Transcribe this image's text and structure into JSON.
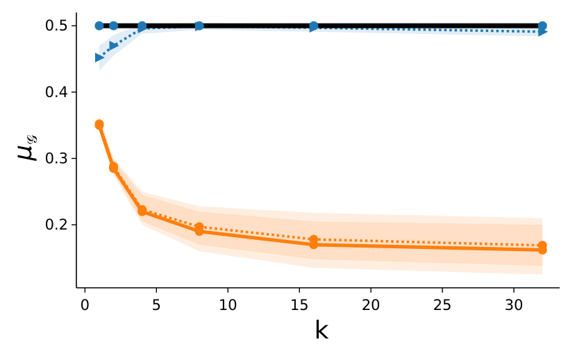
{
  "chart_data": {
    "type": "line",
    "title": "",
    "xlabel": "k",
    "ylabel_main": "μ",
    "ylabel_sub": "𝒢",
    "xlim": [
      -0.6,
      33.2
    ],
    "ylim": [
      0.105,
      0.52
    ],
    "xticks": [
      0,
      5,
      10,
      15,
      20,
      25,
      30
    ],
    "yticks": [
      0.2,
      0.3,
      0.4,
      0.5
    ],
    "xtick_labels": [
      "0",
      "5",
      "10",
      "15",
      "20",
      "25",
      "30"
    ],
    "ytick_labels": [
      "0.2",
      "0.3",
      "0.4",
      "0.5"
    ],
    "grid": false,
    "legend": "none",
    "series": [
      {
        "color": "#ff7f0e",
        "style": "solid",
        "marker": "circle",
        "x": [
          1,
          2,
          4,
          8,
          16,
          32
        ],
        "y": [
          0.35,
          0.285,
          0.22,
          0.19,
          0.17,
          0.162
        ],
        "band_low": [
          0.34,
          0.275,
          0.2,
          0.16,
          0.135,
          0.125
        ],
        "band_high": [
          0.362,
          0.297,
          0.245,
          0.22,
          0.205,
          0.2
        ]
      },
      {
        "color": "#ff7f0e",
        "style": "dotted",
        "marker": "circle",
        "x": [
          1,
          2,
          4,
          8,
          16,
          32
        ],
        "y": [
          0.352,
          0.288,
          0.223,
          0.197,
          0.178,
          0.169
        ],
        "band_low": [
          0.342,
          0.278,
          0.205,
          0.17,
          0.148,
          0.138
        ],
        "band_high": [
          0.364,
          0.3,
          0.25,
          0.228,
          0.218,
          0.21
        ]
      },
      {
        "color": "#1f77b4",
        "style": "dotted",
        "marker": "triangle-right",
        "x": [
          1,
          2,
          4,
          8,
          16,
          32
        ],
        "y": [
          0.452,
          0.47,
          0.496,
          0.499,
          0.497,
          0.491
        ],
        "band_low": [
          0.432,
          0.455,
          0.488,
          0.494,
          0.491,
          0.484
        ],
        "band_high": [
          0.47,
          0.486,
          0.503,
          0.504,
          0.503,
          0.499
        ]
      },
      {
        "color": "#1f77b4",
        "style": "solid",
        "marker": "circle",
        "x": [
          1,
          2,
          4,
          8,
          16,
          32
        ],
        "y": [
          0.5,
          0.5,
          0.5,
          0.5,
          0.5,
          0.5
        ],
        "band_low": [
          0.496,
          0.496,
          0.496,
          0.496,
          0.496,
          0.496
        ],
        "band_high": [
          0.504,
          0.504,
          0.504,
          0.504,
          0.504,
          0.504
        ]
      },
      {
        "color": "#000000",
        "style": "solid",
        "marker": "none",
        "x": [
          1,
          32
        ],
        "y": [
          0.5,
          0.5
        ]
      }
    ]
  }
}
